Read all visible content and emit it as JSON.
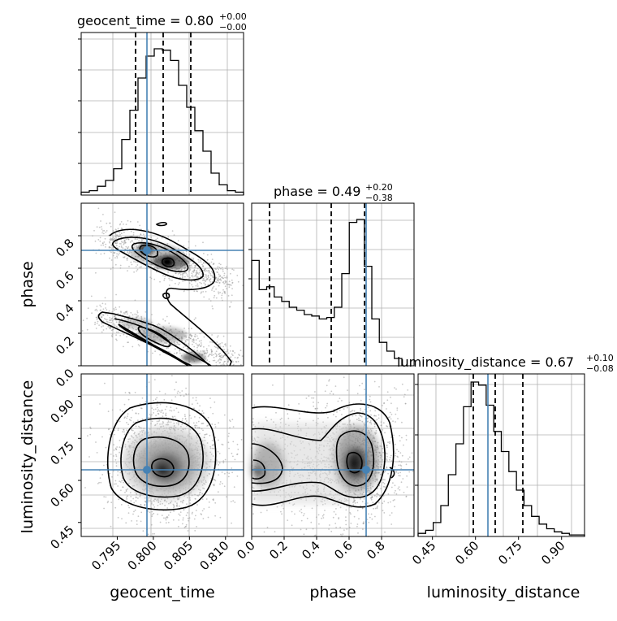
{
  "chart_data": {
    "type": "corner",
    "parameters": [
      {
        "name": "geocent_time",
        "median": "0.80",
        "plus": "+0.00",
        "minus": "−0.00",
        "range": [
          0.79,
          0.8125
        ],
        "ticks": [
          "0.795",
          "0.800",
          "0.805",
          "0.810"
        ],
        "tick_values": [
          0.795,
          0.8,
          0.805,
          0.81
        ],
        "truth": 0.7993,
        "quantiles": [
          0.7984,
          0.8022,
          0.8061
        ]
      },
      {
        "name": "phase",
        "median": "0.49",
        "plus": "+0.20",
        "minus": "−0.38",
        "range": [
          0.0,
          1.0
        ],
        "ticks": [
          "0.0",
          "0.2",
          "0.4",
          "0.6",
          "0.8"
        ],
        "tick_values": [
          0.0,
          0.2,
          0.4,
          0.6,
          0.8
        ],
        "truth": 0.7,
        "quantiles": [
          0.11,
          0.49,
          0.69
        ]
      },
      {
        "name": "luminosity_distance",
        "median": "0.67",
        "plus": "+0.10",
        "minus": "−0.08",
        "range": [
          0.4,
          0.98
        ],
        "ticks": [
          "0.45",
          "0.60",
          "0.75",
          "0.90"
        ],
        "tick_values": [
          0.45,
          0.6,
          0.75,
          0.9
        ],
        "truth": 0.645,
        "quantiles": [
          0.59,
          0.67,
          0.775
        ]
      }
    ],
    "hist_geocent_time": [
      0.02,
      0.03,
      0.06,
      0.1,
      0.18,
      0.38,
      0.58,
      0.8,
      0.95,
      1.0,
      0.99,
      0.92,
      0.75,
      0.6,
      0.44,
      0.3,
      0.15,
      0.07,
      0.03,
      0.02
    ],
    "hist_phase": [
      0.72,
      0.52,
      0.54,
      0.47,
      0.44,
      0.4,
      0.38,
      0.35,
      0.34,
      0.32,
      0.33,
      0.4,
      0.63,
      0.98,
      1.0,
      0.68,
      0.32,
      0.16,
      0.1,
      0.05
    ],
    "hist_luminosity_distance": [
      0.02,
      0.04,
      0.09,
      0.2,
      0.4,
      0.6,
      0.84,
      1.0,
      0.98,
      0.85,
      0.68,
      0.55,
      0.42,
      0.3,
      0.2,
      0.13,
      0.08,
      0.05,
      0.03,
      0.02,
      0.01,
      0.01
    ],
    "colors": {
      "truth": "#4682b4",
      "contour": "#000000",
      "grid": "#b0b0b0"
    }
  }
}
